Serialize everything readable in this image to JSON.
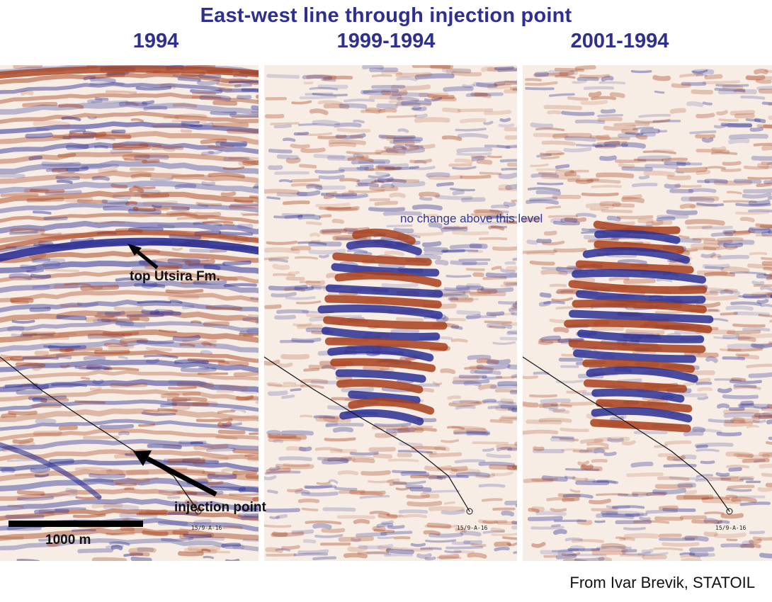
{
  "title": "East-west line through injection point",
  "panels": [
    {
      "label": "1994"
    },
    {
      "label": "1999-1994"
    },
    {
      "label": "2001-1994"
    }
  ],
  "annotations": {
    "top_utsira": "top Utsira Fm.",
    "injection_point": "injection point",
    "no_change": "no change above this level",
    "scale_bar": "1000 m"
  },
  "well_label": "15/9-A-16",
  "credit": "From Ivar Brevik, STATOIL",
  "colors": {
    "title": "#2e2f8f",
    "seismic_positive": "#a8401c",
    "seismic_negative": "#2c2f94",
    "background": "#f7ede4"
  }
}
